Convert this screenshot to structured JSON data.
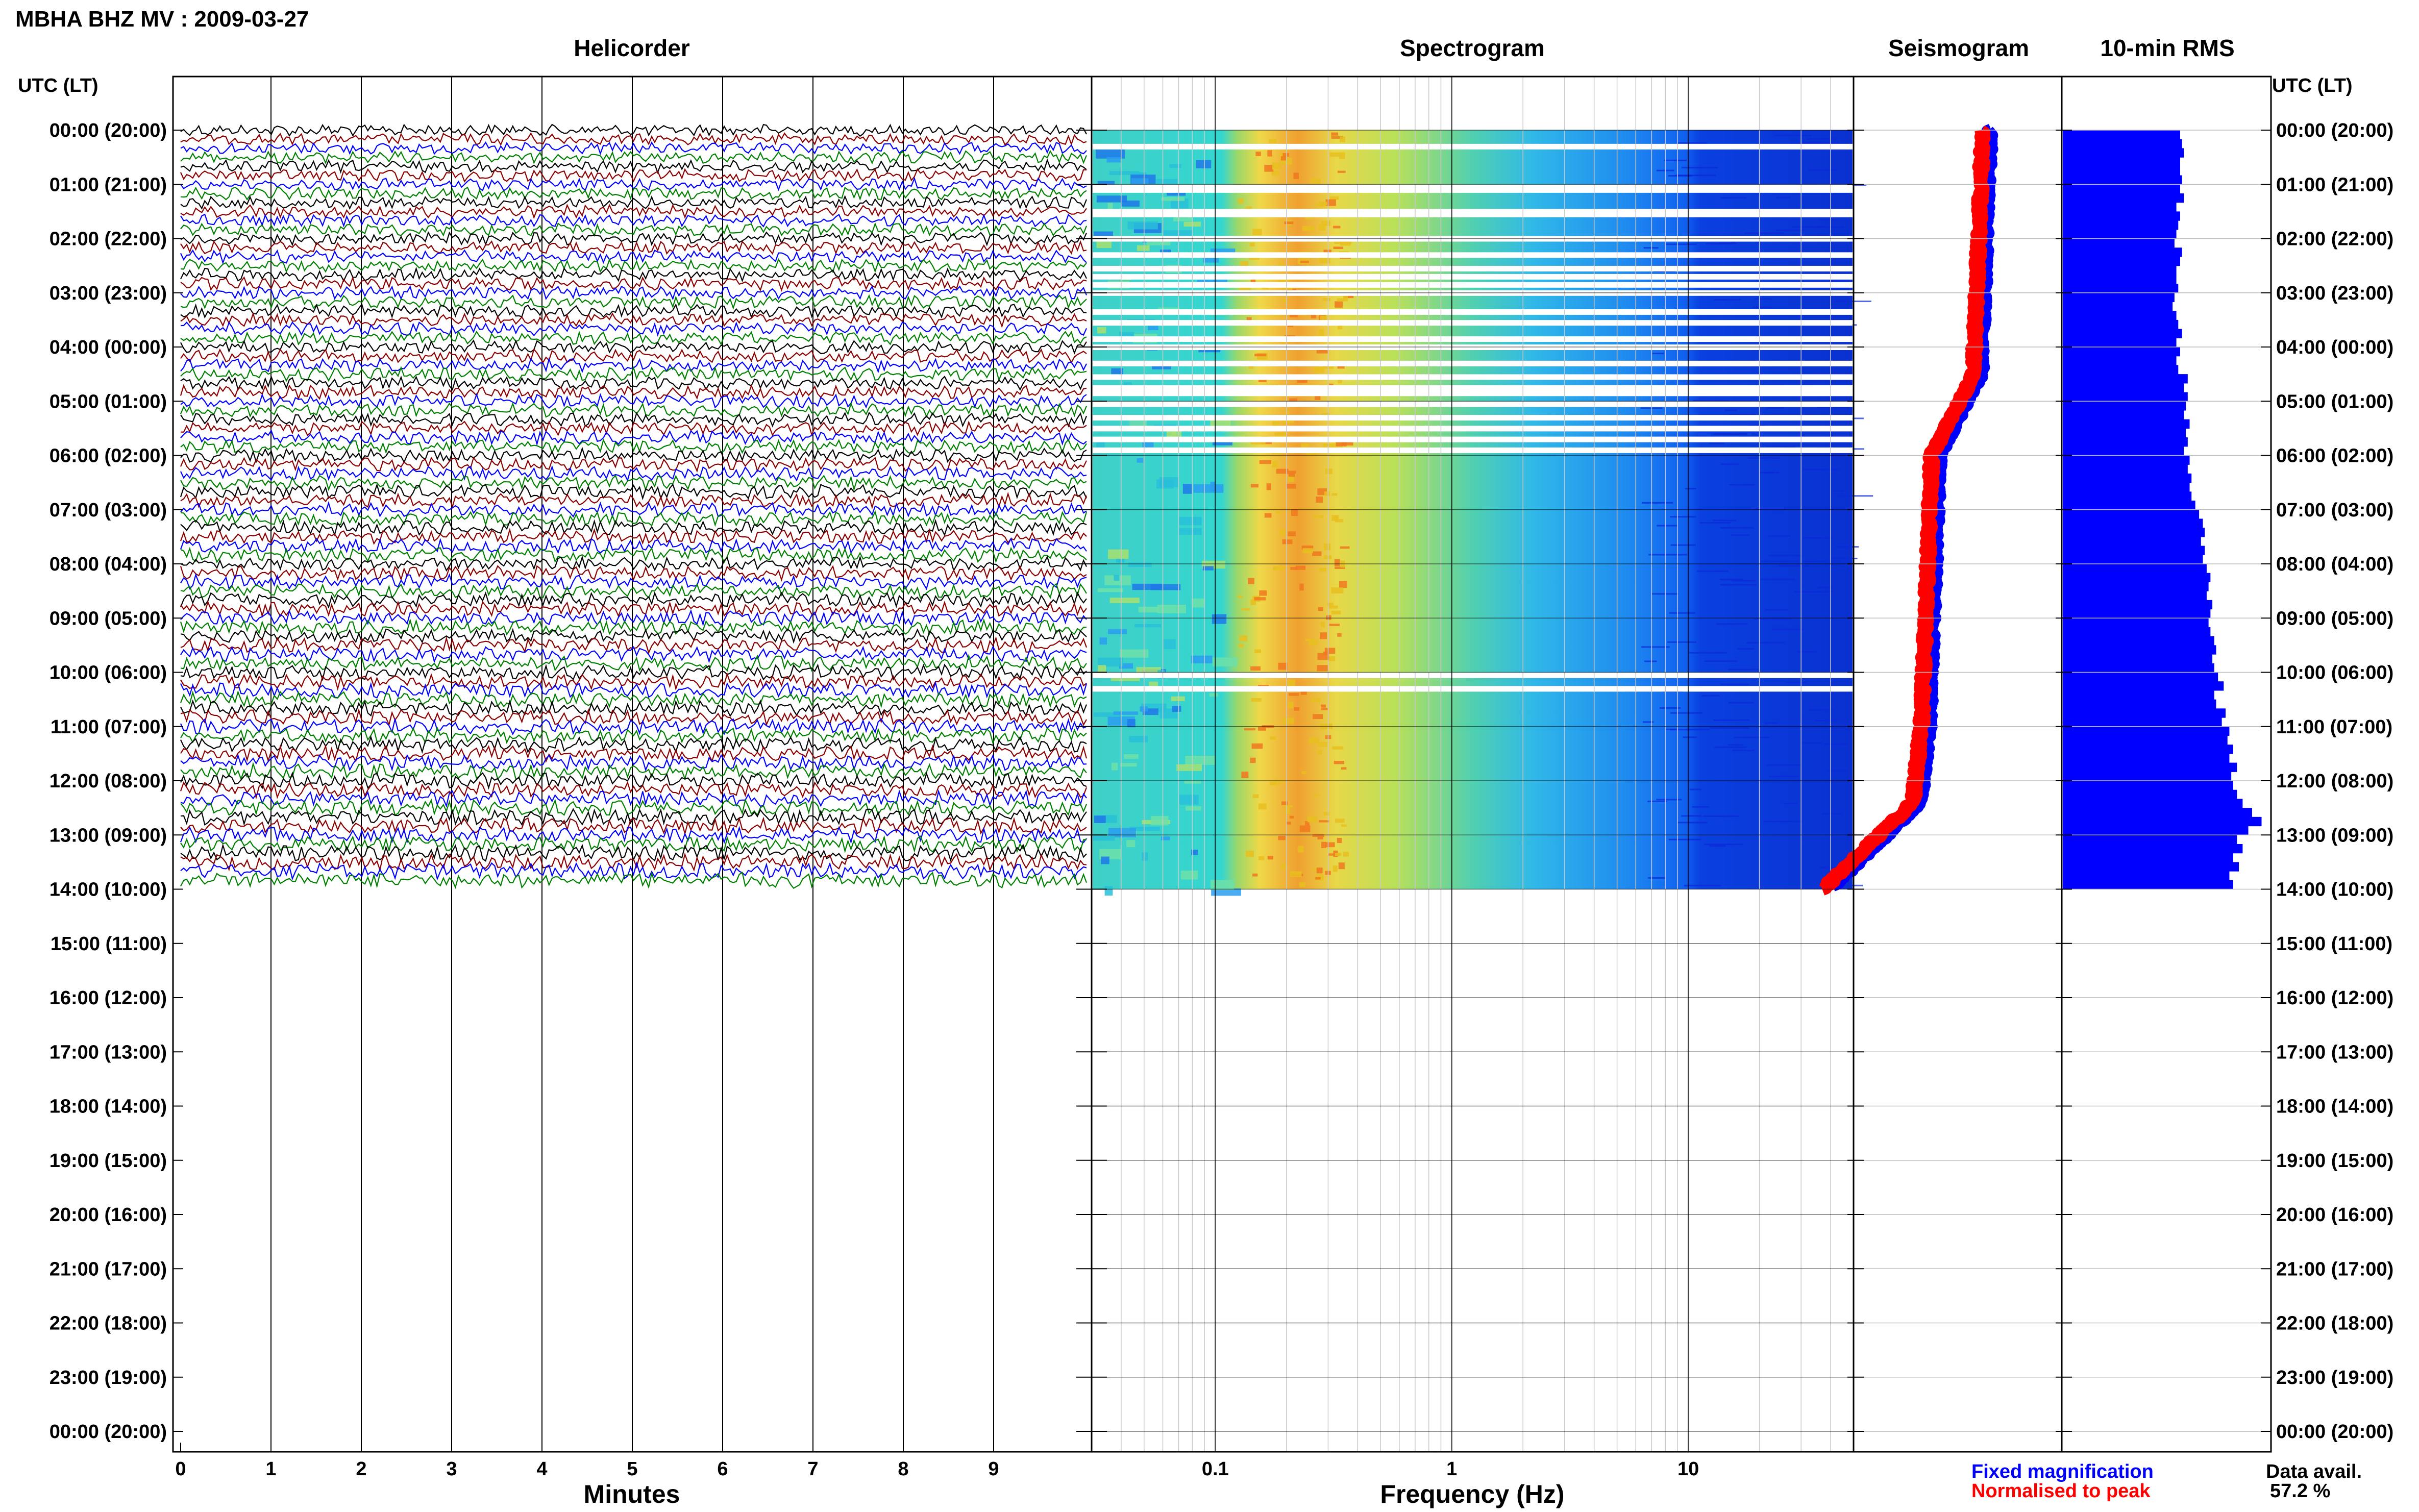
{
  "header": {
    "title": "MBHA BHZ MV : 2009-03-27"
  },
  "colors": {
    "trace_colors": [
      "#000000",
      "#8b0000",
      "#0000ff",
      "#008000"
    ],
    "fixed_magnification": "#0000ff",
    "normalised_to_peak": "#ff0000",
    "rms_bars": "#0000ff",
    "grid": "#000000",
    "light_grid": "#c8c8c8"
  },
  "chart_data": {
    "type": "heatmap",
    "data_through_row": 14,
    "time_axis": {
      "header": "UTC (LT)",
      "labels": [
        "00:00 (20:00)",
        "01:00 (21:00)",
        "02:00 (22:00)",
        "03:00 (23:00)",
        "04:00 (00:00)",
        "05:00 (01:00)",
        "06:00 (02:00)",
        "07:00 (03:00)",
        "08:00 (04:00)",
        "09:00 (05:00)",
        "10:00 (06:00)",
        "11:00 (07:00)",
        "12:00 (08:00)",
        "13:00 (09:00)",
        "14:00 (10:00)",
        "15:00 (11:00)",
        "16:00 (12:00)",
        "17:00 (13:00)",
        "18:00 (14:00)",
        "19:00 (15:00)",
        "20:00 (16:00)",
        "21:00 (17:00)",
        "22:00 (18:00)",
        "23:00 (19:00)",
        "00:00 (20:00)"
      ]
    },
    "helicorder": {
      "title": "Helicorder",
      "xlabel": "Minutes",
      "xlim": [
        0,
        10
      ],
      "xticks": [
        "0",
        "1",
        "2",
        "3",
        "4",
        "5",
        "6",
        "7",
        "8",
        "9"
      ],
      "traces_per_hour": 6,
      "trace_minutes": 10
    },
    "spectrogram": {
      "title": "Spectrogram",
      "xlabel": "Frequency (Hz)",
      "xscale": "log",
      "xlim": [
        0.03,
        50
      ],
      "xticks": [
        "0.1",
        "1",
        "10"
      ],
      "peak_band_hz": [
        0.12,
        0.35
      ],
      "gap_rows": [
        0.3,
        1.05,
        1.1,
        1.5,
        1.55,
        2.0,
        2.3,
        2.55,
        2.7,
        2.85,
        3.0,
        3.35,
        3.55,
        3.85,
        4.0,
        4.3,
        4.55,
        4.75,
        4.85,
        5.05,
        5.3,
        5.5,
        5.7,
        5.9,
        10.05,
        10.3
      ]
    },
    "seismogram": {
      "title": "Seismogram",
      "series": [
        {
          "name": "Fixed magnification",
          "color": "#0000ff"
        },
        {
          "name": "Normalised to peak",
          "color": "#ff0000"
        }
      ]
    },
    "rms": {
      "title": "10-min RMS",
      "values": [
        0.62,
        0.63,
        0.64,
        0.62,
        0.62,
        0.63,
        0.62,
        0.64,
        0.6,
        0.62,
        0.61,
        0.6,
        0.59,
        0.63,
        0.62,
        0.6,
        0.6,
        0.61,
        0.59,
        0.58,
        0.6,
        0.61,
        0.63,
        0.6,
        0.62,
        0.6,
        0.61,
        0.66,
        0.64,
        0.66,
        0.65,
        0.64,
        0.67,
        0.65,
        0.66,
        0.64,
        0.67,
        0.66,
        0.68,
        0.67,
        0.68,
        0.7,
        0.72,
        0.74,
        0.75,
        0.73,
        0.75,
        0.74,
        0.76,
        0.78,
        0.77,
        0.76,
        0.79,
        0.78,
        0.77,
        0.78,
        0.8,
        0.81,
        0.79,
        0.8,
        0.82,
        0.85,
        0.8,
        0.81,
        0.86,
        0.84,
        0.88,
        0.87,
        0.9,
        0.88,
        0.92,
        0.89,
        0.9,
        0.92,
        0.95,
        1.0,
        1.05,
        0.98,
        0.92,
        0.95,
        0.9,
        0.93,
        0.88,
        0.9
      ]
    }
  },
  "footer": {
    "legend_fixed": "Fixed magnification",
    "legend_normalised": "Normalised to peak",
    "data_avail_label": "Data avail.",
    "data_avail_value": "57.2 %"
  }
}
